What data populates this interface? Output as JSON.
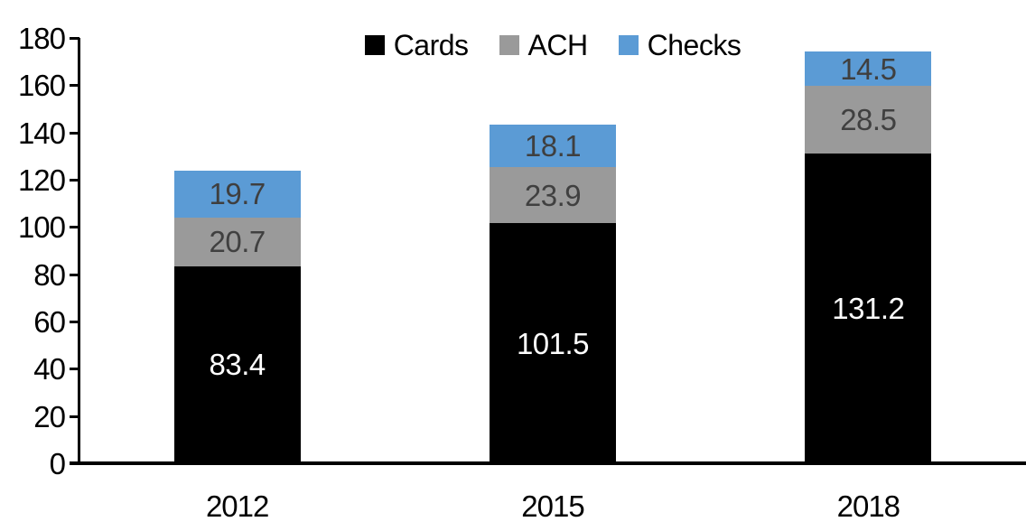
{
  "chart_data": {
    "type": "bar",
    "stacked": true,
    "categories": [
      "2012",
      "2015",
      "2018"
    ],
    "series": [
      {
        "name": "Cards",
        "color": "#000000",
        "label_color": "#ffffff",
        "values": [
          83.4,
          101.5,
          131.2
        ]
      },
      {
        "name": "ACH",
        "color": "#9a9a9a",
        "label_color": "#404040",
        "values": [
          20.7,
          23.9,
          28.5
        ]
      },
      {
        "name": "Checks",
        "color": "#5b9bd5",
        "label_color": "#3f3f3f",
        "values": [
          19.7,
          18.1,
          14.5
        ]
      }
    ],
    "ylim": [
      0,
      180
    ],
    "ytick_step": 20,
    "ytick_labels": [
      "0",
      "20",
      "40",
      "60",
      "80",
      "100",
      "120",
      "140",
      "160",
      "180"
    ],
    "value_label_decimals": 1,
    "grid": false,
    "legend_position": "top-center",
    "legend_entries": [
      "Cards",
      "ACH",
      "Checks"
    ],
    "axis_color": "#000000",
    "background_color": "#ffffff"
  }
}
